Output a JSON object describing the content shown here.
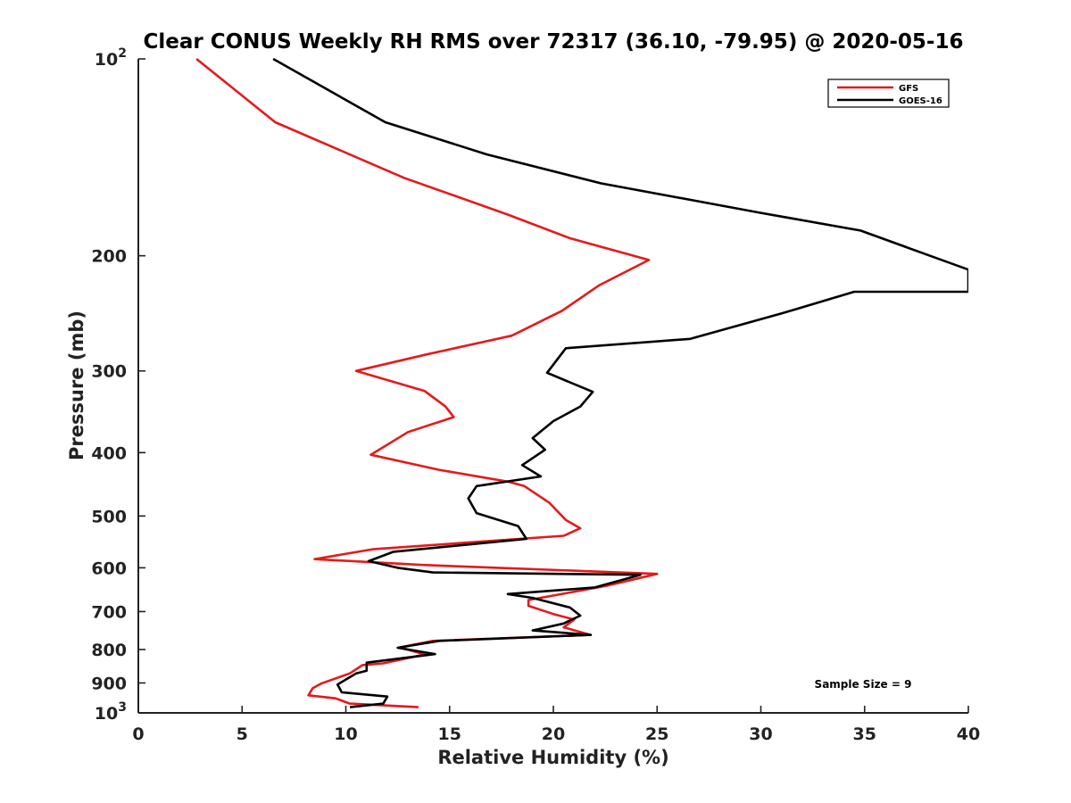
{
  "chart_data": {
    "type": "line",
    "title": "Clear CONUS Weekly RH RMS over 72317 (36.10, -79.95) @ 2020-05-16",
    "xlabel": "Relative Humidity (%)",
    "ylabel": "Pressure (mb)",
    "xlim": [
      0,
      40
    ],
    "ylim": [
      100,
      1000
    ],
    "y_scale": "log",
    "y_reversed": true,
    "x_ticks": [
      "0",
      "5",
      "10",
      "15",
      "20",
      "25",
      "30",
      "35",
      "40"
    ],
    "y_ticks": [
      {
        "value": 100,
        "base": "10",
        "exp": "2"
      },
      {
        "value": 200,
        "label": "200"
      },
      {
        "value": 300,
        "label": "300"
      },
      {
        "value": 400,
        "label": "400"
      },
      {
        "value": 500,
        "label": "500"
      },
      {
        "value": 600,
        "label": "600"
      },
      {
        "value": 700,
        "label": "700"
      },
      {
        "value": 800,
        "label": "800"
      },
      {
        "value": 900,
        "label": "900"
      },
      {
        "value": 1000,
        "base": "10",
        "exp": "3"
      }
    ],
    "legend_position": "top-right",
    "grid": false,
    "annotation": "Sample Size = 9",
    "series": [
      {
        "name": "GFS",
        "color": "#e41a1c",
        "points": [
          [
            2.8,
            100
          ],
          [
            6.6,
            125
          ],
          [
            12.8,
            152
          ],
          [
            17.8,
            173
          ],
          [
            20.8,
            188
          ],
          [
            24.6,
            203
          ],
          [
            22.2,
            222
          ],
          [
            20.4,
            243
          ],
          [
            18.0,
            265
          ],
          [
            13.9,
            283
          ],
          [
            10.5,
            300
          ],
          [
            13.8,
            322
          ],
          [
            14.8,
            340
          ],
          [
            15.2,
            353
          ],
          [
            13.0,
            372
          ],
          [
            11.2,
            403
          ],
          [
            14.5,
            425
          ],
          [
            17.8,
            443
          ],
          [
            18.6,
            450
          ],
          [
            19.8,
            477
          ],
          [
            20.6,
            507
          ],
          [
            21.3,
            522
          ],
          [
            20.5,
            536
          ],
          [
            11.3,
            562
          ],
          [
            8.5,
            582
          ],
          [
            13.7,
            594
          ],
          [
            25.0,
            613
          ],
          [
            22.5,
            640
          ],
          [
            18.8,
            672
          ],
          [
            18.8,
            686
          ],
          [
            20.0,
            706
          ],
          [
            21.0,
            720
          ],
          [
            20.5,
            740
          ],
          [
            21.8,
            760
          ],
          [
            14.2,
            776
          ],
          [
            12.6,
            794
          ],
          [
            13.8,
            814
          ],
          [
            11.8,
            840
          ],
          [
            10.8,
            845
          ],
          [
            10.2,
            870
          ],
          [
            8.8,
            902
          ],
          [
            8.4,
            917
          ],
          [
            8.2,
            940
          ],
          [
            9.5,
            950
          ],
          [
            10.2,
            968
          ],
          [
            13.5,
            980
          ]
        ]
      },
      {
        "name": "GOES-16",
        "color": "#000000",
        "points": [
          [
            6.5,
            100
          ],
          [
            11.9,
            125
          ],
          [
            16.8,
            140
          ],
          [
            22.3,
            155
          ],
          [
            30.0,
            172
          ],
          [
            34.8,
            183
          ],
          [
            40.0,
            210
          ],
          [
            40.0,
            227
          ],
          [
            34.5,
            227
          ],
          [
            31.0,
            245
          ],
          [
            26.6,
            268
          ],
          [
            20.6,
            277
          ],
          [
            19.7,
            302
          ],
          [
            21.9,
            323
          ],
          [
            21.3,
            340
          ],
          [
            20.0,
            358
          ],
          [
            19.0,
            380
          ],
          [
            19.6,
            396
          ],
          [
            18.5,
            418
          ],
          [
            19.4,
            435
          ],
          [
            16.3,
            450
          ],
          [
            15.9,
            470
          ],
          [
            16.3,
            495
          ],
          [
            18.3,
            518
          ],
          [
            18.7,
            542
          ],
          [
            12.3,
            567
          ],
          [
            11.1,
            586
          ],
          [
            12.5,
            600
          ],
          [
            14.2,
            610
          ],
          [
            24.2,
            615
          ],
          [
            22.0,
            643
          ],
          [
            17.8,
            658
          ],
          [
            19.0,
            667
          ],
          [
            20.8,
            690
          ],
          [
            21.3,
            710
          ],
          [
            20.5,
            730
          ],
          [
            19.0,
            748
          ],
          [
            21.8,
            760
          ],
          [
            14.5,
            776
          ],
          [
            12.5,
            795
          ],
          [
            14.3,
            813
          ],
          [
            11.0,
            838
          ],
          [
            11.0,
            862
          ],
          [
            10.5,
            870
          ],
          [
            9.6,
            905
          ],
          [
            9.8,
            930
          ],
          [
            12.0,
            944
          ],
          [
            11.8,
            968
          ],
          [
            10.2,
            980
          ]
        ]
      }
    ]
  }
}
